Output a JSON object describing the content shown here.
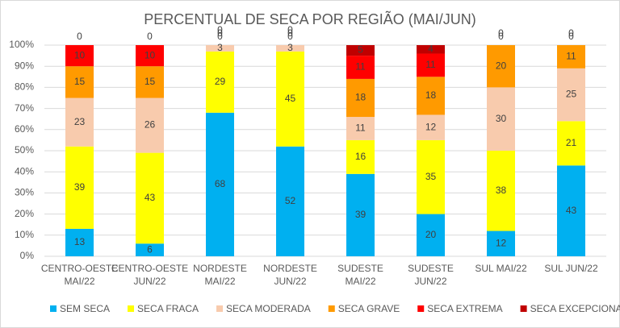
{
  "chart_data": {
    "type": "stacked_bar",
    "title": "PERCENTUAL DE SECA POR REGIÃO (MAI/JUN)",
    "categories": [
      [
        "CENTRO-OESTE",
        "MAI/22"
      ],
      [
        "CENTRO-OESTE",
        "JUN/22"
      ],
      [
        "NORDESTE",
        "MAI/22"
      ],
      [
        "NORDESTE",
        "JUN/22"
      ],
      [
        "SUDESTE",
        "MAI/22"
      ],
      [
        "SUDESTE",
        "JUN/22"
      ],
      [
        "SUL MAI/22"
      ],
      [
        "SUL JUN/22"
      ]
    ],
    "series": [
      {
        "name": "SEM SECA",
        "color": "#00b0f0",
        "values": [
          13,
          6,
          68,
          52,
          39,
          20,
          12,
          43
        ]
      },
      {
        "name": "SECA FRACA",
        "color": "#ffff00",
        "values": [
          39,
          43,
          29,
          45,
          16,
          35,
          38,
          21
        ]
      },
      {
        "name": "SECA MODERADA",
        "color": "#f8cbad",
        "values": [
          23,
          26,
          3,
          3,
          11,
          12,
          30,
          25
        ]
      },
      {
        "name": "SECA GRAVE",
        "color": "#ff9a00",
        "values": [
          15,
          15,
          0,
          0,
          18,
          18,
          20,
          11
        ]
      },
      {
        "name": "SECA EXTREMA",
        "color": "#ff0000",
        "values": [
          10,
          10,
          0,
          0,
          11,
          11,
          0,
          0
        ]
      },
      {
        "name": "SECA EXCEPCIONAL",
        "color": "#c00000",
        "values": [
          0,
          0,
          0,
          0,
          5,
          4,
          0,
          0
        ]
      }
    ],
    "ylim": [
      0,
      100
    ],
    "yticks": [
      {
        "value": 0,
        "label": "0%"
      },
      {
        "value": 10,
        "label": "10%"
      },
      {
        "value": 20,
        "label": "20%"
      },
      {
        "value": 30,
        "label": "30%"
      },
      {
        "value": 40,
        "label": "40%"
      },
      {
        "value": 50,
        "label": "50%"
      },
      {
        "value": 60,
        "label": "60%"
      },
      {
        "value": 70,
        "label": "70%"
      },
      {
        "value": 80,
        "label": "80%"
      },
      {
        "value": 90,
        "label": "90%"
      },
      {
        "value": 100,
        "label": "100%"
      }
    ],
    "grid": true
  }
}
